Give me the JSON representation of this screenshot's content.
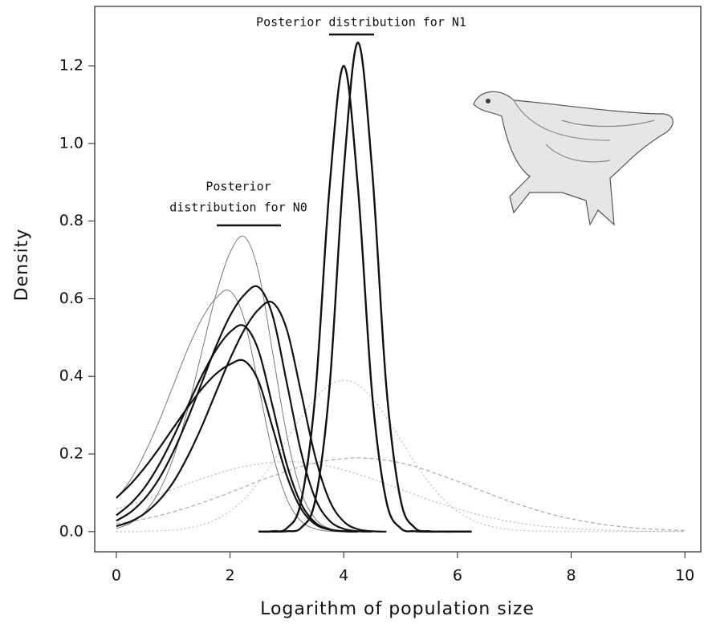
{
  "chart_data": {
    "type": "line",
    "x_label": "Logarithm of population size",
    "y_label": "Density",
    "annotations": [
      {
        "lines": [
          "Posterior distribution for N1"
        ]
      },
      {
        "lines": [
          "Posterior",
          "distribution for N0"
        ]
      }
    ],
    "xlim": [
      -0.38,
      10.28
    ],
    "ylim": [
      -0.052,
      1.353
    ],
    "xticks": [
      0,
      2,
      4,
      6,
      8,
      10
    ],
    "yticks": [
      {
        "value": 0,
        "label": "0.0"
      },
      0.2,
      0.4,
      0.6,
      0.8,
      {
        "value": 1,
        "label": "1.0"
      },
      1.2
    ],
    "x": [
      0,
      0.25,
      0.5,
      0.75,
      1,
      1.25,
      1.5,
      1.75,
      2,
      2.25,
      2.5,
      2.75,
      3,
      3.25,
      3.5,
      3.75,
      4,
      4.25,
      4.5,
      4.75,
      5,
      5.25,
      5.5,
      5.75,
      6,
      6.25,
      6.5,
      6.75,
      7,
      7.25,
      7.5,
      7.75,
      8,
      8.25,
      8.5,
      8.75,
      9,
      9.25,
      9.5,
      9.75,
      10
    ],
    "series": [
      {
        "color": "#bdbdbd",
        "width": 1.2,
        "dash": "dotted",
        "values": [
          0,
          0,
          0.001,
          0.002,
          0.004,
          0.009,
          0.017,
          0.031,
          0.053,
          0.084,
          0.127,
          0.178,
          0.237,
          0.294,
          0.344,
          0.378,
          0.39,
          0.378,
          0.344,
          0.294,
          0.237,
          0.178,
          0.127,
          0.084,
          0.053,
          0.031,
          0.017,
          0.009,
          0.004,
          0.002,
          0.001,
          0,
          0,
          0,
          0,
          0,
          0,
          0,
          0,
          0,
          0
        ]
      },
      {
        "color": "#aaaaaa",
        "width": 1.2,
        "dash": "dashed",
        "values": [
          0.02,
          0.026,
          0.033,
          0.041,
          0.051,
          0.062,
          0.074,
          0.087,
          0.101,
          0.115,
          0.13,
          0.143,
          0.156,
          0.168,
          0.177,
          0.184,
          0.188,
          0.19,
          0.188,
          0.184,
          0.177,
          0.168,
          0.156,
          0.143,
          0.13,
          0.115,
          0.101,
          0.087,
          0.074,
          0.062,
          0.051,
          0.041,
          0.033,
          0.026,
          0.02,
          0.015,
          0.011,
          0.008,
          0.006,
          0.004,
          0.003
        ]
      },
      {
        "color": "#b5b5b5",
        "width": 1.2,
        "dash": "dotted",
        "values": [
          0.059,
          0.07,
          0.082,
          0.096,
          0.109,
          0.123,
          0.136,
          0.148,
          0.159,
          0.168,
          0.174,
          0.179,
          0.18,
          0.179,
          0.174,
          0.168,
          0.159,
          0.148,
          0.136,
          0.123,
          0.109,
          0.096,
          0.082,
          0.07,
          0.059,
          0.048,
          0.039,
          0.031,
          0.024,
          0.019,
          0.014,
          0.011,
          0.008,
          0.006,
          0.004,
          0.003,
          0.002,
          0.001,
          0.001,
          0.001,
          0
        ]
      },
      {
        "color": "#777777",
        "width": 1,
        "dash": "solid",
        "values": [
          0.008,
          0.022,
          0.05,
          0.103,
          0.189,
          0.312,
          0.461,
          0.609,
          0.719,
          0.76,
          0.67,
          0.461,
          0.247,
          0.103,
          0.033,
          0.008,
          0.002,
          0,
          null,
          null,
          null,
          null,
          null,
          null,
          null,
          null,
          null,
          null,
          null,
          null,
          null,
          null,
          null,
          null,
          null,
          null,
          null,
          null,
          null,
          null,
          null
        ]
      },
      {
        "color": "#777777",
        "width": 1,
        "dash": "solid",
        "values": [
          0.084,
          0.134,
          0.202,
          0.284,
          0.376,
          0.468,
          0.547,
          0.601,
          0.62,
          0.547,
          0.376,
          0.202,
          0.084,
          0.027,
          0.007,
          0.001,
          0,
          null,
          null,
          null,
          null,
          null,
          null,
          null,
          null,
          null,
          null,
          null,
          null,
          null,
          null,
          null,
          null,
          null,
          null,
          null,
          null,
          null,
          null,
          null,
          null
        ]
      },
      {
        "color": "#111111",
        "width": 2.2,
        "dash": "solid",
        "values": [
          0.028,
          0.05,
          0.085,
          0.136,
          0.205,
          0.289,
          0.382,
          0.476,
          0.556,
          0.61,
          0.63,
          0.556,
          0.382,
          0.205,
          0.085,
          0.028,
          0.007,
          0.001,
          0,
          null,
          null,
          null,
          null,
          null,
          null,
          null,
          null,
          null,
          null,
          null,
          null,
          null,
          null,
          null,
          null,
          null,
          null,
          null,
          null,
          null,
          null
        ]
      },
      {
        "color": "#111111",
        "width": 2.2,
        "dash": "solid",
        "values": [
          0.014,
          0.026,
          0.047,
          0.08,
          0.127,
          0.192,
          0.27,
          0.358,
          0.445,
          0.52,
          0.572,
          0.59,
          0.52,
          0.358,
          0.192,
          0.08,
          0.026,
          0.006,
          0.001,
          0,
          null,
          null,
          null,
          null,
          null,
          null,
          null,
          null,
          null,
          null,
          null,
          null,
          null,
          null,
          null,
          null,
          null,
          null,
          null,
          null,
          null
        ]
      },
      {
        "color": "#111111",
        "width": 2.2,
        "dash": "solid",
        "values": [
          0.042,
          0.072,
          0.114,
          0.172,
          0.243,
          0.322,
          0.4,
          0.467,
          0.514,
          0.53,
          0.467,
          0.322,
          0.172,
          0.072,
          0.023,
          0.006,
          0.001,
          0,
          null,
          null,
          null,
          null,
          null,
          null,
          null,
          null,
          null,
          null,
          null,
          null,
          null,
          null,
          null,
          null,
          null,
          null,
          null,
          null,
          null,
          null,
          null
        ]
      },
      {
        "color": "#111111",
        "width": 2.2,
        "dash": "solid",
        "values": [
          0.087,
          0.122,
          0.165,
          0.214,
          0.267,
          0.319,
          0.367,
          0.406,
          0.431,
          0.44,
          0.388,
          0.267,
          0.143,
          0.059,
          0.019,
          0.005,
          0.001,
          0,
          null,
          null,
          null,
          null,
          null,
          null,
          null,
          null,
          null,
          null,
          null,
          null,
          null,
          null,
          null,
          null,
          null,
          null,
          null,
          null,
          null,
          null,
          null
        ]
      },
      {
        "color": "#111111",
        "width": 2.4,
        "dash": "solid",
        "values": [
          null,
          null,
          null,
          null,
          null,
          null,
          null,
          null,
          null,
          null,
          0,
          0,
          0.001,
          0.01,
          0.082,
          0.372,
          0.93,
          1.26,
          0.93,
          0.372,
          0.082,
          0.01,
          0.001,
          0,
          0,
          0,
          null,
          null,
          null,
          null,
          null,
          null,
          null,
          null,
          null,
          null,
          null,
          null,
          null,
          null,
          null
        ]
      },
      {
        "color": "#111111",
        "width": 2.4,
        "dash": "solid",
        "values": [
          null,
          null,
          null,
          null,
          null,
          null,
          null,
          null,
          null,
          null,
          0,
          0.001,
          0.009,
          0.078,
          0.354,
          0.886,
          1.2,
          0.886,
          0.354,
          0.078,
          0.009,
          0.001,
          0,
          0,
          0,
          0,
          null,
          null,
          null,
          null,
          null,
          null,
          null,
          null,
          null,
          null,
          null,
          null,
          null,
          null,
          null
        ]
      }
    ]
  }
}
